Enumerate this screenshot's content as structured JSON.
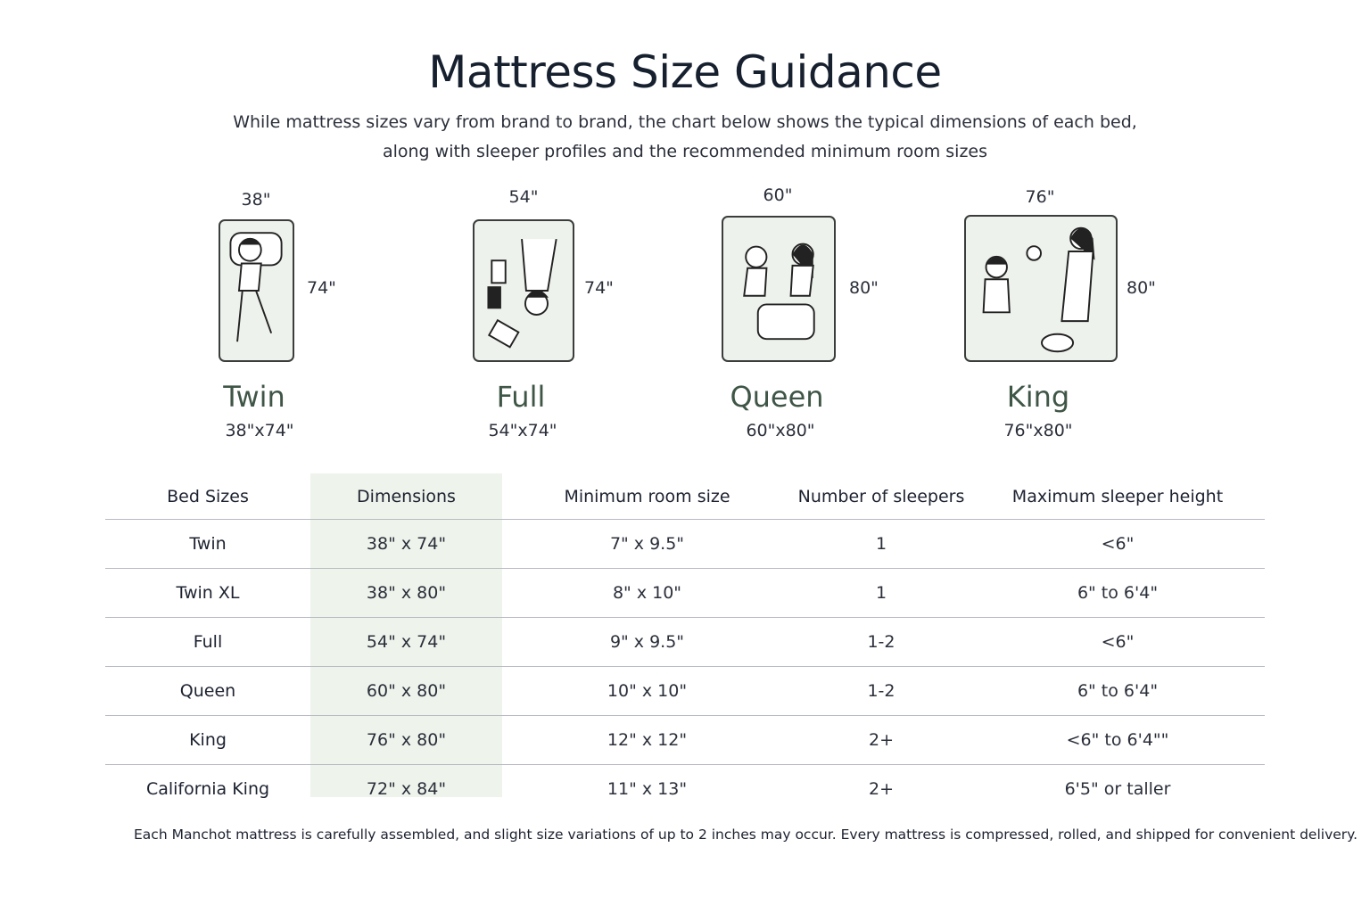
{
  "title": "Mattress Size Guidance",
  "subtitle_lines": [
    "While mattress sizes vary from brand to brand, the chart below shows the typical dimensions of each bed,",
    "along with sleeper profiles and the recommended minimum room sizes"
  ],
  "beds": [
    {
      "name": "Twin",
      "width_label": "38\"",
      "length_label": "74\"",
      "dims": "38\"x74\""
    },
    {
      "name": "Full",
      "width_label": "54\"",
      "length_label": "74\"",
      "dims": "54\"x74\""
    },
    {
      "name": "Queen",
      "width_label": "60\"",
      "length_label": "80\"",
      "dims": "60\"x80\""
    },
    {
      "name": "King",
      "width_label": "76\"",
      "length_label": "80\"",
      "dims": "76\"x80\""
    }
  ],
  "table": {
    "headers": [
      "Bed Sizes",
      "Dimensions",
      "Minimum room size",
      "Number of sleepers",
      "Maximum sleeper height"
    ],
    "rows": [
      [
        "Twin",
        "38\" x 74\"",
        "7\" x 9.5\"",
        "1",
        "<6\""
      ],
      [
        "Twin XL",
        "38\" x 80\"",
        "8\" x 10\"",
        "1",
        "6\" to 6'4\""
      ],
      [
        "Full",
        "54\" x 74\"",
        "9\" x 9.5\"",
        "1-2",
        "<6\""
      ],
      [
        "Queen",
        "60\" x 80\"",
        "10\" x 10\"",
        "1-2",
        "6\" to 6'4\""
      ],
      [
        "King",
        "76\" x 80\"",
        "12\" x 12\"",
        "2+",
        "<6\" to 6'4\"\""
      ],
      [
        "California King",
        "72\" x 84\"",
        "11\" x 13\"",
        "2+",
        "6'5\" or taller"
      ]
    ]
  },
  "footnote": "Each Manchot mattress is carefully assembled, and slight size variations of up to 2 inches may occur. Every mattress is compressed, rolled, and shipped for convenient delivery.",
  "colors": {
    "bed_fill": "#eef2ec",
    "bed_name": "#3f5647",
    "highlight_column": "#eef3ec"
  }
}
